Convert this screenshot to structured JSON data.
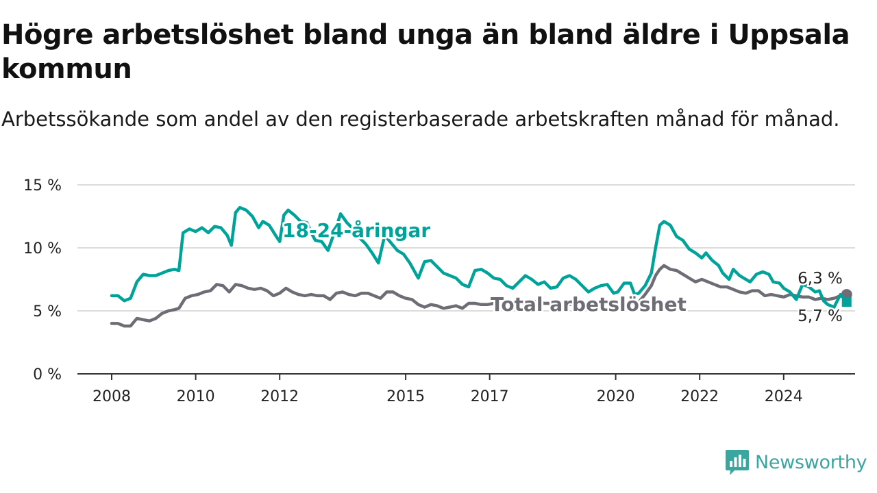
{
  "title": "Högre arbetslöshet bland unga än bland äldre i Uppsala kommun",
  "subtitle": "Arbetssökande som andel av den registerbaserade arbetskraften månad för månad.",
  "brand": {
    "name": "Newsworthy",
    "icon": "newsworthy-logo-icon",
    "color": "#3aa6a0"
  },
  "colors": {
    "youth": "#00a39a",
    "total": "#6e6d75",
    "grid": "#dcdcdc",
    "axis": "#333333"
  },
  "chart_data": {
    "type": "line",
    "xlim": [
      2008,
      2025.5
    ],
    "ylim": [
      0,
      15
    ],
    "y_ticks": [
      {
        "value": 0,
        "label": "0 %"
      },
      {
        "value": 5,
        "label": "5 %"
      },
      {
        "value": 10,
        "label": "10 %"
      },
      {
        "value": 15,
        "label": "15 %"
      }
    ],
    "x_ticks": [
      {
        "value": 2008,
        "label": "2008"
      },
      {
        "value": 2010,
        "label": "2010"
      },
      {
        "value": 2012,
        "label": "2012"
      },
      {
        "value": 2015,
        "label": "2015"
      },
      {
        "value": 2017,
        "label": "2017"
      },
      {
        "value": 2020,
        "label": "2020"
      },
      {
        "value": 2022,
        "label": "2022"
      },
      {
        "value": 2024,
        "label": "2024"
      }
    ],
    "grid": "horizontal",
    "series": [
      {
        "name": "18-24-åringar",
        "key": "youth",
        "end_label": "5,7 %",
        "points": [
          [
            2008.0,
            6.2
          ],
          [
            2008.15,
            6.2
          ],
          [
            2008.3,
            5.8
          ],
          [
            2008.45,
            6.0
          ],
          [
            2008.6,
            7.3
          ],
          [
            2008.75,
            7.9
          ],
          [
            2008.9,
            7.8
          ],
          [
            2009.05,
            7.8
          ],
          [
            2009.2,
            8.0
          ],
          [
            2009.35,
            8.2
          ],
          [
            2009.5,
            8.3
          ],
          [
            2009.6,
            8.2
          ],
          [
            2009.7,
            11.2
          ],
          [
            2009.85,
            11.5
          ],
          [
            2010.0,
            11.3
          ],
          [
            2010.15,
            11.6
          ],
          [
            2010.3,
            11.2
          ],
          [
            2010.45,
            11.7
          ],
          [
            2010.6,
            11.6
          ],
          [
            2010.75,
            11.0
          ],
          [
            2010.85,
            10.2
          ],
          [
            2010.95,
            12.8
          ],
          [
            2011.05,
            13.2
          ],
          [
            2011.2,
            13.0
          ],
          [
            2011.35,
            12.5
          ],
          [
            2011.5,
            11.6
          ],
          [
            2011.6,
            12.1
          ],
          [
            2011.75,
            11.8
          ],
          [
            2011.9,
            11.0
          ],
          [
            2012.0,
            10.5
          ],
          [
            2012.1,
            12.6
          ],
          [
            2012.2,
            13.0
          ],
          [
            2012.35,
            12.6
          ],
          [
            2012.5,
            12.1
          ],
          [
            2012.65,
            12.0
          ],
          [
            2012.75,
            11.2
          ],
          [
            2012.85,
            10.6
          ],
          [
            2013.0,
            10.5
          ],
          [
            2013.15,
            9.8
          ],
          [
            2013.3,
            11.2
          ],
          [
            2013.45,
            12.7
          ],
          [
            2013.6,
            12.0
          ],
          [
            2013.75,
            11.5
          ],
          [
            2013.9,
            10.8
          ],
          [
            2014.05,
            10.3
          ],
          [
            2014.2,
            9.6
          ],
          [
            2014.35,
            8.8
          ],
          [
            2014.5,
            11.0
          ],
          [
            2014.65,
            10.4
          ],
          [
            2014.8,
            9.8
          ],
          [
            2014.95,
            9.5
          ],
          [
            2015.1,
            8.8
          ],
          [
            2015.3,
            7.6
          ],
          [
            2015.45,
            8.9
          ],
          [
            2015.6,
            9.0
          ],
          [
            2015.75,
            8.5
          ],
          [
            2015.9,
            8.0
          ],
          [
            2016.05,
            7.8
          ],
          [
            2016.2,
            7.6
          ],
          [
            2016.35,
            7.1
          ],
          [
            2016.5,
            6.9
          ],
          [
            2016.65,
            8.2
          ],
          [
            2016.8,
            8.3
          ],
          [
            2016.95,
            8.0
          ],
          [
            2017.1,
            7.6
          ],
          [
            2017.25,
            7.5
          ],
          [
            2017.4,
            7.0
          ],
          [
            2017.55,
            6.8
          ],
          [
            2017.7,
            7.3
          ],
          [
            2017.85,
            7.8
          ],
          [
            2018.0,
            7.5
          ],
          [
            2018.15,
            7.1
          ],
          [
            2018.3,
            7.3
          ],
          [
            2018.45,
            6.8
          ],
          [
            2018.6,
            6.9
          ],
          [
            2018.75,
            7.6
          ],
          [
            2018.9,
            7.8
          ],
          [
            2019.05,
            7.5
          ],
          [
            2019.2,
            7.0
          ],
          [
            2019.35,
            6.5
          ],
          [
            2019.5,
            6.8
          ],
          [
            2019.65,
            7.0
          ],
          [
            2019.8,
            7.1
          ],
          [
            2019.95,
            6.4
          ],
          [
            2020.05,
            6.5
          ],
          [
            2020.2,
            7.2
          ],
          [
            2020.35,
            7.2
          ],
          [
            2020.45,
            6.3
          ],
          [
            2020.55,
            6.4
          ],
          [
            2020.7,
            7.0
          ],
          [
            2020.85,
            8.0
          ],
          [
            2020.95,
            10.0
          ],
          [
            2021.05,
            11.8
          ],
          [
            2021.15,
            12.1
          ],
          [
            2021.3,
            11.8
          ],
          [
            2021.45,
            10.9
          ],
          [
            2021.6,
            10.6
          ],
          [
            2021.75,
            9.9
          ],
          [
            2021.9,
            9.6
          ],
          [
            2022.05,
            9.2
          ],
          [
            2022.15,
            9.6
          ],
          [
            2022.3,
            9.0
          ],
          [
            2022.45,
            8.6
          ],
          [
            2022.55,
            8.0
          ],
          [
            2022.7,
            7.5
          ],
          [
            2022.8,
            8.3
          ],
          [
            2022.95,
            7.8
          ],
          [
            2023.05,
            7.6
          ],
          [
            2023.2,
            7.3
          ],
          [
            2023.35,
            7.9
          ],
          [
            2023.5,
            8.1
          ],
          [
            2023.65,
            7.9
          ],
          [
            2023.75,
            7.3
          ],
          [
            2023.9,
            7.2
          ],
          [
            2024.0,
            6.8
          ],
          [
            2024.15,
            6.5
          ],
          [
            2024.3,
            5.9
          ],
          [
            2024.45,
            7.1
          ],
          [
            2024.6,
            6.9
          ],
          [
            2024.75,
            6.5
          ],
          [
            2024.85,
            6.6
          ],
          [
            2024.95,
            5.8
          ],
          [
            2025.05,
            5.5
          ],
          [
            2025.2,
            5.3
          ],
          [
            2025.35,
            6.3
          ],
          [
            2025.5,
            5.7
          ]
        ]
      },
      {
        "name": "Total arbetslöshet",
        "key": "total",
        "end_label": "6,3 %",
        "points": [
          [
            2008.0,
            4.0
          ],
          [
            2008.15,
            4.0
          ],
          [
            2008.3,
            3.8
          ],
          [
            2008.45,
            3.8
          ],
          [
            2008.6,
            4.4
          ],
          [
            2008.75,
            4.3
          ],
          [
            2008.9,
            4.2
          ],
          [
            2009.05,
            4.4
          ],
          [
            2009.2,
            4.8
          ],
          [
            2009.35,
            5.0
          ],
          [
            2009.5,
            5.1
          ],
          [
            2009.6,
            5.2
          ],
          [
            2009.75,
            6.0
          ],
          [
            2009.9,
            6.2
          ],
          [
            2010.05,
            6.3
          ],
          [
            2010.2,
            6.5
          ],
          [
            2010.35,
            6.6
          ],
          [
            2010.5,
            7.1
          ],
          [
            2010.65,
            7.0
          ],
          [
            2010.8,
            6.5
          ],
          [
            2010.95,
            7.1
          ],
          [
            2011.1,
            7.0
          ],
          [
            2011.25,
            6.8
          ],
          [
            2011.4,
            6.7
          ],
          [
            2011.55,
            6.8
          ],
          [
            2011.7,
            6.6
          ],
          [
            2011.85,
            6.2
          ],
          [
            2012.0,
            6.4
          ],
          [
            2012.15,
            6.8
          ],
          [
            2012.3,
            6.5
          ],
          [
            2012.45,
            6.3
          ],
          [
            2012.6,
            6.2
          ],
          [
            2012.75,
            6.3
          ],
          [
            2012.9,
            6.2
          ],
          [
            2013.05,
            6.2
          ],
          [
            2013.2,
            5.9
          ],
          [
            2013.35,
            6.4
          ],
          [
            2013.5,
            6.5
          ],
          [
            2013.65,
            6.3
          ],
          [
            2013.8,
            6.2
          ],
          [
            2013.95,
            6.4
          ],
          [
            2014.1,
            6.4
          ],
          [
            2014.25,
            6.2
          ],
          [
            2014.4,
            6.0
          ],
          [
            2014.55,
            6.5
          ],
          [
            2014.7,
            6.5
          ],
          [
            2014.85,
            6.2
          ],
          [
            2015.0,
            6.0
          ],
          [
            2015.15,
            5.9
          ],
          [
            2015.3,
            5.5
          ],
          [
            2015.45,
            5.3
          ],
          [
            2015.6,
            5.5
          ],
          [
            2015.75,
            5.4
          ],
          [
            2015.9,
            5.2
          ],
          [
            2016.05,
            5.3
          ],
          [
            2016.2,
            5.4
          ],
          [
            2016.35,
            5.2
          ],
          [
            2016.5,
            5.6
          ],
          [
            2016.65,
            5.6
          ],
          [
            2016.8,
            5.5
          ],
          [
            2016.95,
            5.5
          ],
          [
            2017.1,
            5.6
          ],
          [
            2017.25,
            5.5
          ],
          [
            2017.4,
            5.2
          ],
          [
            2017.55,
            5.3
          ],
          [
            2017.7,
            5.6
          ],
          [
            2017.85,
            5.8
          ],
          [
            2018.0,
            5.8
          ],
          [
            2018.15,
            5.7
          ],
          [
            2018.3,
            5.6
          ],
          [
            2018.45,
            5.6
          ],
          [
            2018.6,
            5.6
          ],
          [
            2018.75,
            5.6
          ],
          [
            2018.9,
            5.5
          ],
          [
            2019.05,
            5.6
          ],
          [
            2019.2,
            5.6
          ],
          [
            2019.35,
            5.5
          ],
          [
            2019.5,
            5.5
          ],
          [
            2019.65,
            5.6
          ],
          [
            2019.8,
            5.6
          ],
          [
            2019.95,
            5.6
          ],
          [
            2020.1,
            5.6
          ],
          [
            2020.25,
            5.6
          ],
          [
            2020.4,
            5.6
          ],
          [
            2020.55,
            5.7
          ],
          [
            2020.7,
            6.3
          ],
          [
            2020.85,
            7.0
          ],
          [
            2020.95,
            7.8
          ],
          [
            2021.05,
            8.3
          ],
          [
            2021.15,
            8.6
          ],
          [
            2021.3,
            8.3
          ],
          [
            2021.45,
            8.2
          ],
          [
            2021.6,
            7.9
          ],
          [
            2021.75,
            7.6
          ],
          [
            2021.9,
            7.3
          ],
          [
            2022.05,
            7.5
          ],
          [
            2022.2,
            7.3
          ],
          [
            2022.35,
            7.1
          ],
          [
            2022.5,
            6.9
          ],
          [
            2022.65,
            6.9
          ],
          [
            2022.8,
            6.7
          ],
          [
            2022.95,
            6.5
          ],
          [
            2023.1,
            6.4
          ],
          [
            2023.25,
            6.6
          ],
          [
            2023.4,
            6.6
          ],
          [
            2023.55,
            6.2
          ],
          [
            2023.7,
            6.3
          ],
          [
            2023.85,
            6.2
          ],
          [
            2024.0,
            6.1
          ],
          [
            2024.15,
            6.3
          ],
          [
            2024.3,
            6.2
          ],
          [
            2024.45,
            6.1
          ],
          [
            2024.6,
            6.1
          ],
          [
            2024.75,
            5.9
          ],
          [
            2024.9,
            6.0
          ],
          [
            2025.05,
            5.9
          ],
          [
            2025.2,
            6.0
          ],
          [
            2025.35,
            6.2
          ],
          [
            2025.5,
            6.3
          ]
        ]
      }
    ]
  }
}
